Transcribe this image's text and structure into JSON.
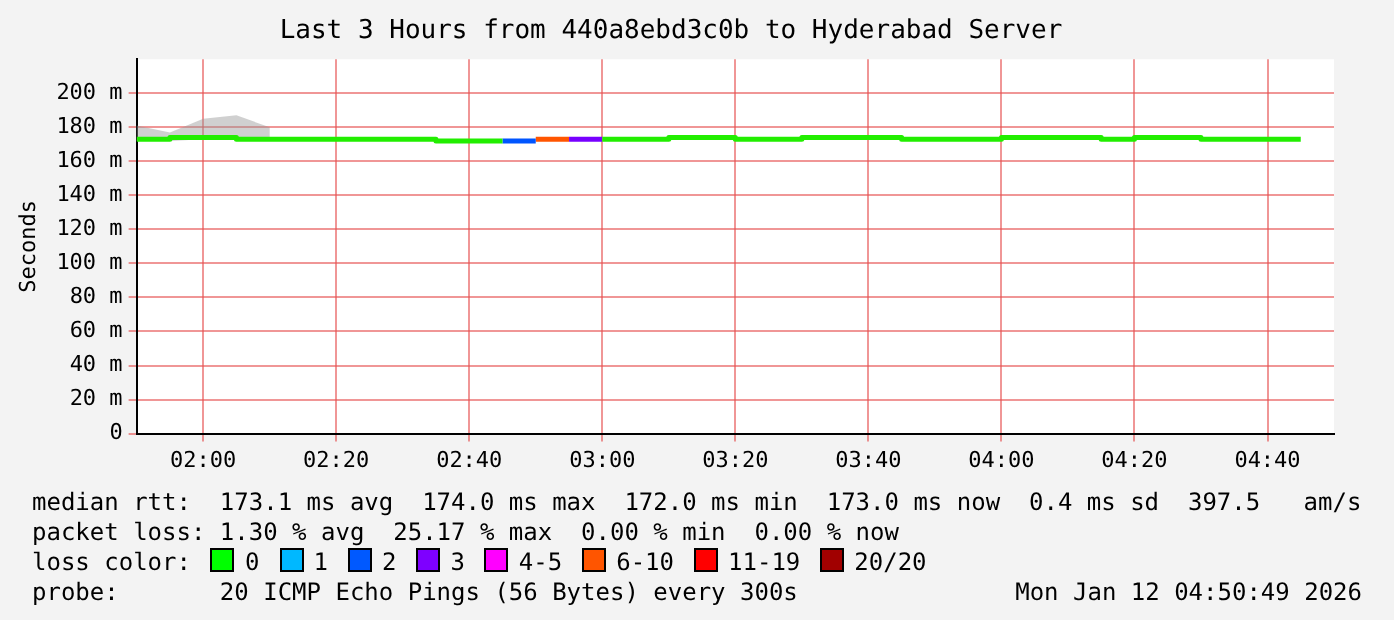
{
  "chart_data": {
    "type": "step",
    "title": "Last 3 Hours from 440a8ebd3c0b to Hyderabad Server",
    "ylabel": "Seconds",
    "x": [
      1.8333,
      1.9167,
      2.0,
      2.0833,
      2.1667,
      2.25,
      2.3333,
      2.4167,
      2.5,
      2.5833,
      2.6667,
      2.75,
      2.8333,
      2.9167,
      3.0,
      3.0833,
      3.1667,
      3.25,
      3.3333,
      3.4167,
      3.5,
      3.5833,
      3.6667,
      3.75,
      3.8333,
      3.9167,
      4.0,
      4.0833,
      4.1667,
      4.25,
      4.3333,
      4.4167,
      4.5,
      4.5833,
      4.6667,
      4.75
    ],
    "series": [
      {
        "color": "#22ee00",
        "values": [
          173,
          173,
          174,
          174,
          173,
          173,
          173,
          173,
          173,
          173,
          172,
          172,
          null,
          null,
          173,
          173,
          173,
          174,
          174,
          173,
          173,
          174,
          174,
          174,
          173,
          173,
          173,
          174,
          174,
          174,
          173,
          174,
          174,
          173,
          173,
          173
        ],
        "lower": [
          172,
          172,
          173,
          173,
          172,
          null,
          null,
          null,
          null,
          null,
          null,
          null,
          null,
          null,
          null,
          null,
          null,
          null,
          null,
          null,
          null,
          null,
          null,
          null,
          null,
          null,
          null,
          null,
          null,
          null,
          null,
          null,
          null,
          null,
          null,
          null
        ],
        "upper": [
          181,
          177,
          185,
          187,
          180,
          null,
          null,
          null,
          null,
          null,
          null,
          null,
          null,
          null,
          null,
          null,
          null,
          null,
          null,
          null,
          null,
          null,
          null,
          null,
          null,
          null,
          null,
          null,
          null,
          null,
          null,
          null,
          null,
          null,
          null,
          null
        ]
      },
      {
        "color": "#0055ff",
        "x": [
          2.75,
          2.8333
        ],
        "values": [
          172,
          172
        ]
      },
      {
        "color": "#ff5500",
        "x": [
          2.8333,
          2.9167
        ],
        "values": [
          173,
          173
        ]
      },
      {
        "color": "#7700ff",
        "x": [
          2.9167,
          3.0
        ],
        "values": [
          173,
          173
        ]
      }
    ],
    "xlim": [
      1.8333,
      4.8333
    ],
    "xticks": [
      {
        "value": 2,
        "label": "02:00"
      },
      {
        "value": 2.3333,
        "label": "02:20"
      },
      {
        "value": 2.6667,
        "label": "02:40"
      },
      {
        "value": 3,
        "label": "03:00"
      },
      {
        "value": 3.3333,
        "label": "03:20"
      },
      {
        "value": 3.6667,
        "label": "03:40"
      },
      {
        "value": 4,
        "label": "04:00"
      },
      {
        "value": 4.3333,
        "label": "04:20"
      },
      {
        "value": 4.6667,
        "label": "04:40"
      }
    ],
    "ylim": [
      0,
      220
    ],
    "yticks": [
      0,
      {
        "value": 20,
        "label": "20 m"
      },
      {
        "value": 40,
        "label": "40 m"
      },
      {
        "value": 60,
        "label": "60 m"
      },
      {
        "value": 80,
        "label": "80 m"
      },
      {
        "value": 100,
        "label": "100 m"
      },
      {
        "value": 120,
        "label": "120 m"
      },
      {
        "value": 140,
        "label": "140 m"
      },
      {
        "value": 160,
        "label": "160 m"
      },
      {
        "value": 180,
        "label": "180 m"
      },
      {
        "value": 200,
        "label": "200 m"
      }
    ],
    "grid": true,
    "legend": false,
    "annotations": [
      "median rtt:  173.1 ms avg  174.0 ms max  172.0 ms min  173.0 ms now  0.4 ms sd  397.5   am/s",
      "packet loss: 1.30 % avg  25.17 % max  0.00 % min  0.00 % now",
      "loss color:",
      "0",
      "1",
      "2",
      "3",
      "4-5",
      "6-10",
      "11-19",
      "20/20",
      "probe:       20 ICMP Echo Pings (56 Bytes) every 300s",
      "Mon Jan 12 04:50:49 2026"
    ]
  }
}
